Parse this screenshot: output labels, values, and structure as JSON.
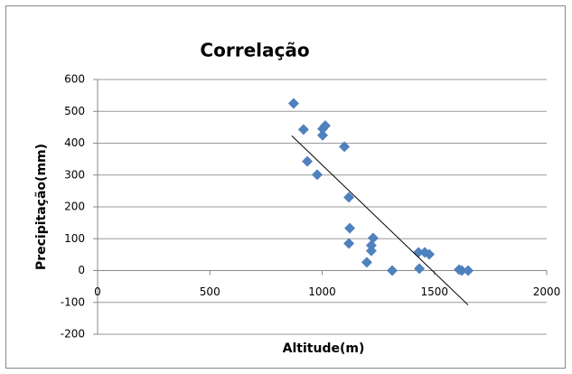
{
  "chart_data": {
    "type": "scatter",
    "title": "Correlação",
    "x_label": "Altitude(m)",
    "y_label": "Precipitação(mm)",
    "series": [
      {
        "name": "Precipitação",
        "color": "#4f81bd",
        "x": [
          873,
          917,
          934,
          978,
          1002,
          1014,
          1002,
          1099,
          1119,
          1123,
          1119,
          1227,
          1219,
          1219,
          1199,
          1312,
          1429,
          1457,
          1477,
          1433,
          1610,
          1622,
          1650
        ],
        "values": [
          525,
          443,
          343,
          301,
          445,
          455,
          425,
          389,
          230,
          133,
          85,
          102,
          79,
          62,
          26,
          0,
          57,
          57,
          51,
          6,
          3,
          0,
          0
        ]
      }
    ],
    "trendline": {
      "color": "#000000",
      "x": [
        865,
        1650
      ],
      "values": [
        423,
        -108
      ]
    },
    "xlim": [
      0,
      2000
    ],
    "xticks": [
      0,
      500,
      1000,
      1500,
      2000
    ],
    "ylim": [
      -200,
      600
    ],
    "yticks": [
      -200,
      -100,
      0,
      100,
      200,
      300,
      400,
      500,
      600
    ],
    "grid": true
  }
}
